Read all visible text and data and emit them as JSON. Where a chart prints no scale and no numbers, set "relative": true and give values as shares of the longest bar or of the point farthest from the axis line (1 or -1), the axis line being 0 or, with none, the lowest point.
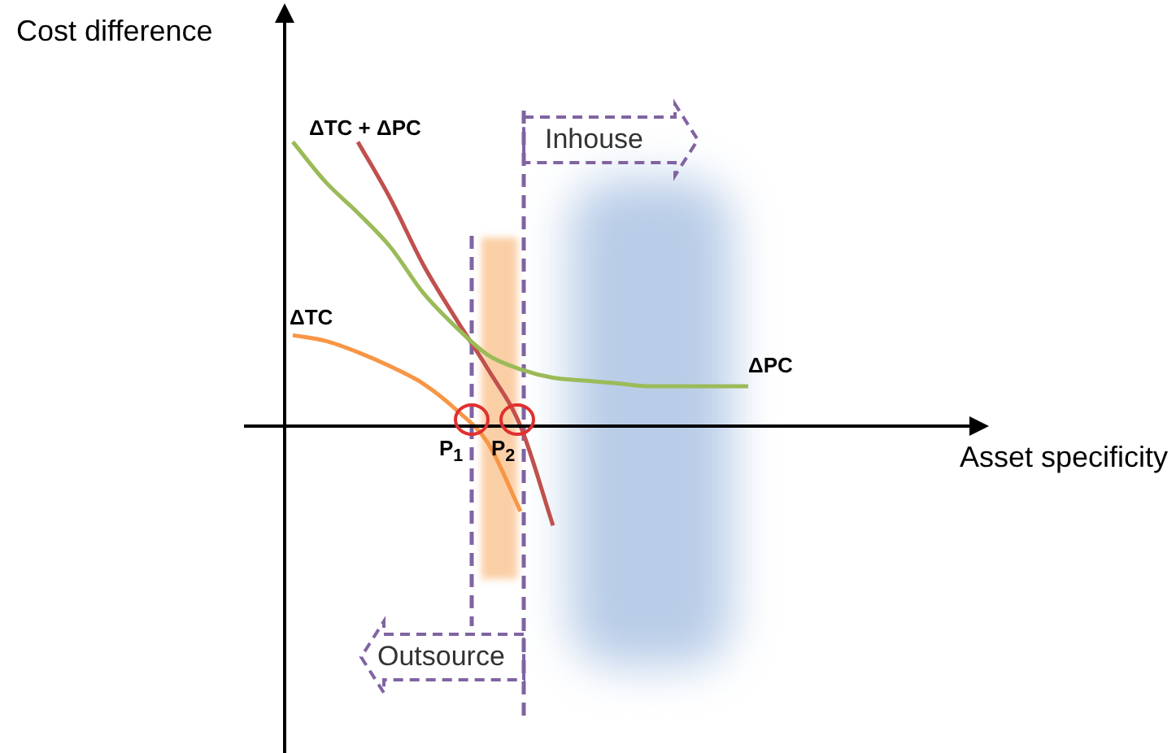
{
  "chart_data": {
    "type": "line",
    "relative": true,
    "xlabel": "Asset specificity",
    "ylabel": "Cost difference",
    "categories": [
      null,
      null,
      null,
      null,
      null,
      null,
      null,
      null,
      null,
      null,
      null,
      null,
      null,
      null,
      null,
      null,
      null,
      null,
      null,
      null,
      null,
      null
    ],
    "series": [
      {
        "name": "ΔPC",
        "color": "#9bbb59",
        "values": [
          1.0,
          0.86,
          0.75,
          0.63,
          0.47,
          0.35,
          0.25,
          0.2,
          0.17,
          0.16,
          0.15,
          0.14,
          0.14,
          0.14,
          0.14,
          null,
          null,
          null,
          null,
          null,
          null,
          null
        ]
      },
      {
        "name": "ΔTC",
        "color": "#f79646",
        "values": [
          0.32,
          0.3,
          0.26,
          0.21,
          0.15,
          0.06,
          -0.06,
          -0.3,
          null,
          null,
          null,
          null,
          null,
          null,
          null,
          null,
          null,
          null,
          null,
          null,
          null,
          null
        ]
      },
      {
        "name": "ΔTC + ΔPC",
        "color": "#c0504d",
        "values": [
          null,
          null,
          1.0,
          0.8,
          0.57,
          0.38,
          0.2,
          0.0,
          -0.35,
          null,
          null,
          null,
          null,
          null,
          null,
          null,
          null,
          null,
          null,
          null,
          null,
          null
        ]
      }
    ],
    "annotations": [
      "P$_{1}$",
      "P$_{2}$",
      "Inhouse",
      "Outsource"
    ],
    "legend": false,
    "marker": "none",
    "line_style": "solid"
  }
}
